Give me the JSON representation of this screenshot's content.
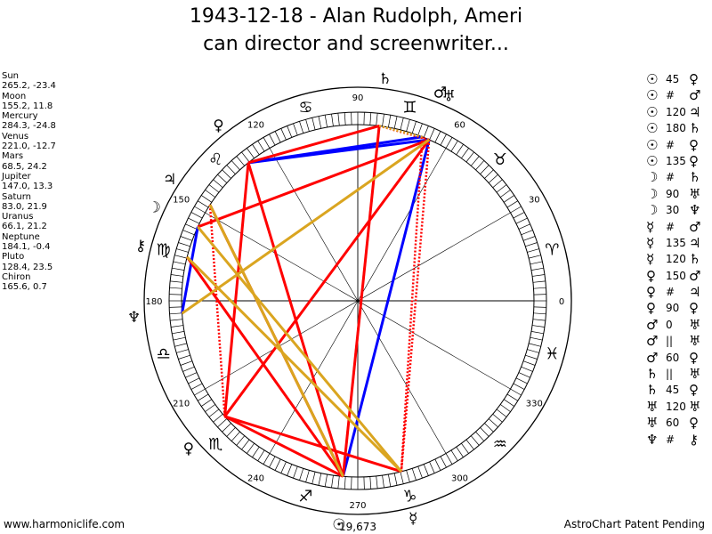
{
  "title": {
    "line1": "1943-12-18 - Alan Rudolph, Ameri",
    "line2": "can director and screenwriter..."
  },
  "planets": [
    {
      "name": "Sun",
      "coords": "265.2, -23.4"
    },
    {
      "name": "Moon",
      "coords": "155.2, 11.8"
    },
    {
      "name": "Mercury",
      "coords": "284.3, -24.8"
    },
    {
      "name": "Venus",
      "coords": "221.0, -12.7"
    },
    {
      "name": "Mars",
      "coords": "68.5, 24.2"
    },
    {
      "name": "Jupiter",
      "coords": "147.0, 13.3"
    },
    {
      "name": "Saturn",
      "coords": "83.0, 21.9"
    },
    {
      "name": "Uranus",
      "coords": "66.1, 21.2"
    },
    {
      "name": "Neptune",
      "coords": "184.1, -0.4"
    },
    {
      "name": "Pluto",
      "coords": "128.4, 23.5"
    },
    {
      "name": "Chiron",
      "coords": "165.6, 0.7"
    }
  ],
  "aspects": [
    {
      "p1": "☉",
      "aspect": "45",
      "p2": "♀"
    },
    {
      "p1": "☉",
      "aspect": "#",
      "p2": "♂"
    },
    {
      "p1": "☉",
      "aspect": "120",
      "p2": "♃"
    },
    {
      "p1": "☉",
      "aspect": "180",
      "p2": "♄"
    },
    {
      "p1": "☉",
      "aspect": "#",
      "p2": "♀"
    },
    {
      "p1": "☉",
      "aspect": "135",
      "p2": "♀"
    },
    {
      "p1": "☽",
      "aspect": "#",
      "p2": "♄"
    },
    {
      "p1": "☽",
      "aspect": "90",
      "p2": "♅"
    },
    {
      "p1": "☽",
      "aspect": "30",
      "p2": "♆"
    },
    {
      "p1": "☿",
      "aspect": "#",
      "p2": "♂"
    },
    {
      "p1": "☿",
      "aspect": "135",
      "p2": "♃"
    },
    {
      "p1": "☿",
      "aspect": "120",
      "p2": "♄"
    },
    {
      "p1": "♀",
      "aspect": "150",
      "p2": "♂"
    },
    {
      "p1": "♀",
      "aspect": "#",
      "p2": "♃"
    },
    {
      "p1": "♀",
      "aspect": "90",
      "p2": "♀"
    },
    {
      "p1": "♂",
      "aspect": "0",
      "p2": "♅"
    },
    {
      "p1": "♂",
      "aspect": "||",
      "p2": "♅"
    },
    {
      "p1": "♂",
      "aspect": "60",
      "p2": "♀"
    },
    {
      "p1": "♄",
      "aspect": "||",
      "p2": "♅"
    },
    {
      "p1": "♄",
      "aspect": "45",
      "p2": "♀"
    },
    {
      "p1": "♅",
      "aspect": "120",
      "p2": "♅"
    },
    {
      "p1": "♅",
      "aspect": "60",
      "p2": "♀"
    },
    {
      "p1": "♆",
      "aspect": "#",
      "p2": "⚷"
    }
  ],
  "chart_data": {
    "type": "astrology-wheel",
    "degree_labels": [
      "0",
      "30",
      "60",
      "90",
      "120",
      "150",
      "180",
      "210",
      "240",
      "270",
      "300",
      "330"
    ],
    "bottom_readout": "19,673",
    "bodies": [
      {
        "glyph": "☉",
        "lon": 265.2,
        "color": "#000000"
      },
      {
        "glyph": "☽",
        "lon": 155.2,
        "color": "#000000"
      },
      {
        "glyph": "☿",
        "lon": 284.3,
        "color": "#000000"
      },
      {
        "glyph": "♀",
        "lon": 221.0,
        "color": "#000000"
      },
      {
        "glyph": "♂",
        "lon": 68.5,
        "color": "#000000"
      },
      {
        "glyph": "♃",
        "lon": 147.0,
        "color": "#000000"
      },
      {
        "glyph": "♄",
        "lon": 83.0,
        "color": "#000000"
      },
      {
        "glyph": "♅",
        "lon": 66.1,
        "color": "#000000"
      },
      {
        "glyph": "♆",
        "lon": 184.1,
        "color": "#000000"
      },
      {
        "glyph": "♀",
        "lon": 128.4,
        "color": "#000000"
      },
      {
        "glyph": "⚷",
        "lon": 165.6,
        "color": "#000000"
      }
    ],
    "signs": [
      {
        "glyph": "♈",
        "lon": 15
      },
      {
        "glyph": "♉",
        "lon": 45
      },
      {
        "glyph": "♊",
        "lon": 75
      },
      {
        "glyph": "♋",
        "lon": 105
      },
      {
        "glyph": "♌",
        "lon": 135
      },
      {
        "glyph": "♍",
        "lon": 165
      },
      {
        "glyph": "♎",
        "lon": 195
      },
      {
        "glyph": "♏",
        "lon": 225
      },
      {
        "glyph": "♐",
        "lon": 255
      },
      {
        "glyph": "♑",
        "lon": 285
      },
      {
        "glyph": "♒",
        "lon": 315
      },
      {
        "glyph": "♓",
        "lon": 345
      }
    ],
    "aspect_lines": [
      {
        "from": 68.5,
        "to": 128.4,
        "color": "#0000ff",
        "style": "solid"
      },
      {
        "from": 66.1,
        "to": 128.4,
        "color": "#0000ff",
        "style": "solid"
      },
      {
        "from": 66.1,
        "to": 265.2,
        "color": "#0000ff",
        "style": "solid"
      },
      {
        "from": 155.2,
        "to": 184.1,
        "color": "#0000ff",
        "style": "solid"
      },
      {
        "from": 83.0,
        "to": 128.4,
        "color": "#ff0000",
        "style": "solid"
      },
      {
        "from": 83.0,
        "to": 265.2,
        "color": "#ff0000",
        "style": "solid"
      },
      {
        "from": 66.1,
        "to": 155.2,
        "color": "#ff0000",
        "style": "solid"
      },
      {
        "from": 128.4,
        "to": 221.0,
        "color": "#ff0000",
        "style": "solid"
      },
      {
        "from": 128.4,
        "to": 265.2,
        "color": "#ff0000",
        "style": "solid"
      },
      {
        "from": 147.0,
        "to": 265.2,
        "color": "#ff0000",
        "style": "solid"
      },
      {
        "from": 165.6,
        "to": 265.2,
        "color": "#ff0000",
        "style": "solid"
      },
      {
        "from": 221.0,
        "to": 265.2,
        "color": "#ff0000",
        "style": "solid"
      },
      {
        "from": 221.0,
        "to": 284.3,
        "color": "#ff0000",
        "style": "solid"
      },
      {
        "from": 66.1,
        "to": 221.0,
        "color": "#ff0000",
        "style": "solid"
      },
      {
        "from": 68.5,
        "to": 284.3,
        "color": "#ff0000",
        "style": "dotted"
      },
      {
        "from": 66.1,
        "to": 284.3,
        "color": "#ff0000",
        "style": "dotted"
      },
      {
        "from": 83.0,
        "to": 265.2,
        "color": "#ff0000",
        "style": "dotted"
      },
      {
        "from": 128.4,
        "to": 265.2,
        "color": "#ff0000",
        "style": "dotted"
      },
      {
        "from": 147.0,
        "to": 221.0,
        "color": "#ff0000",
        "style": "dotted"
      },
      {
        "from": 83.0,
        "to": 66.1,
        "color": "#ff0000",
        "style": "dotted"
      },
      {
        "from": 147.0,
        "to": 265.2,
        "color": "#daa520",
        "style": "solid"
      },
      {
        "from": 155.2,
        "to": 284.3,
        "color": "#daa520",
        "style": "solid"
      },
      {
        "from": 165.6,
        "to": 284.3,
        "color": "#daa520",
        "style": "solid"
      },
      {
        "from": 66.1,
        "to": 184.1,
        "color": "#daa520",
        "style": "solid"
      },
      {
        "from": 83.0,
        "to": 68.5,
        "color": "#daa520",
        "style": "dotted"
      }
    ]
  }
}
